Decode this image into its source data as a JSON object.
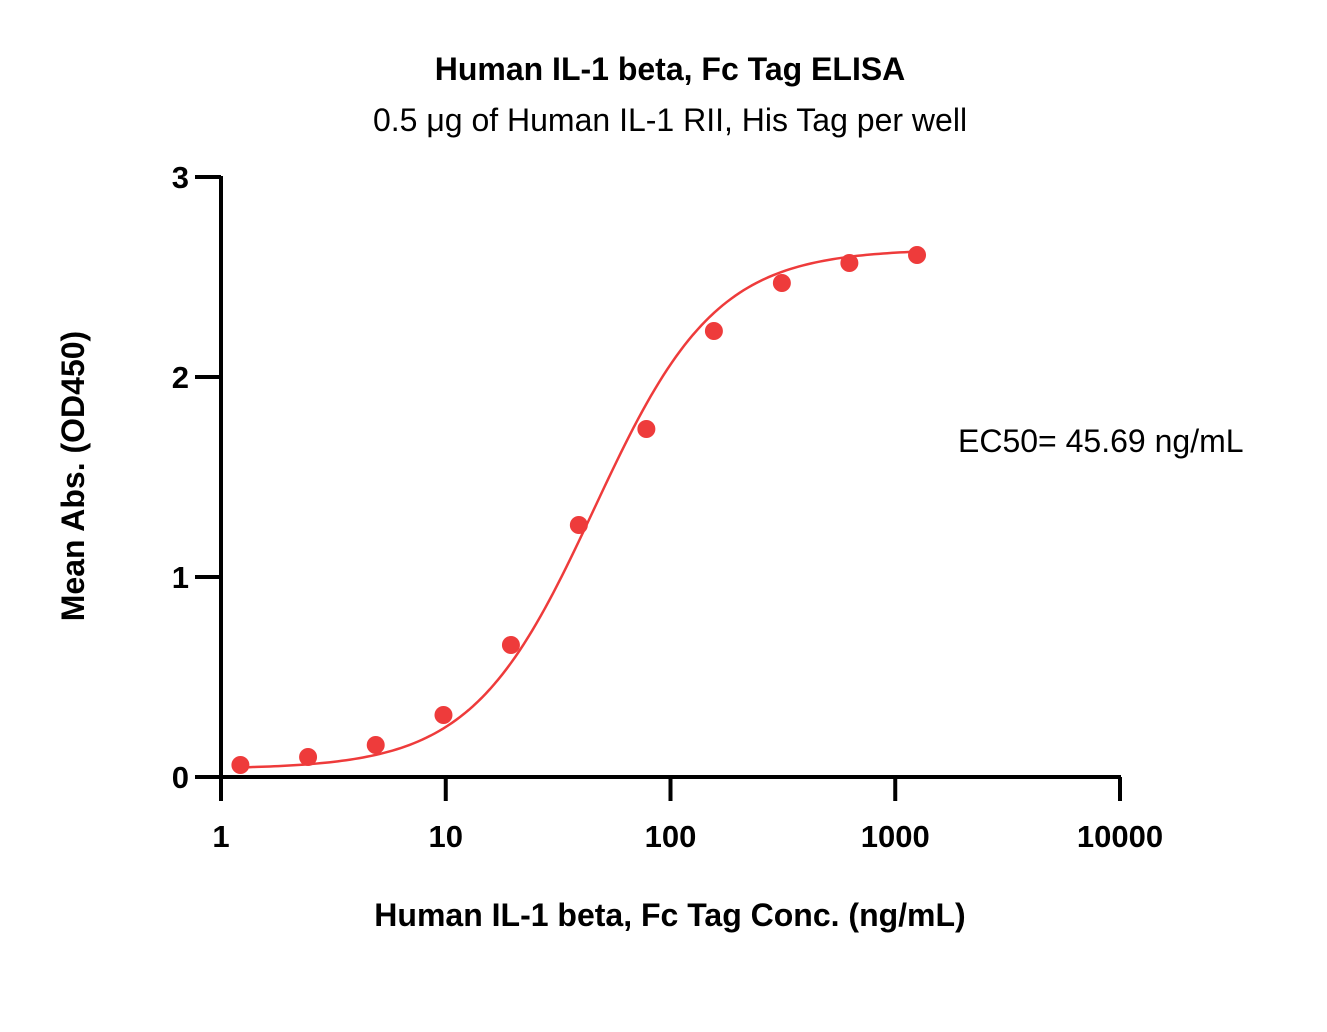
{
  "chart_data": {
    "type": "scatter",
    "title": "Human IL-1 beta, Fc Tag ELISA",
    "subtitle": "0.5 μg of Human IL-1 RII, His Tag per well",
    "xlabel": "Human IL-1 beta, Fc Tag Conc. (ng/mL)",
    "ylabel": "Mean Abs. (OD450)",
    "x_scale": "log",
    "xlim": [
      1,
      10000
    ],
    "ylim": [
      0,
      3
    ],
    "x_ticks": [
      1,
      10,
      100,
      1000,
      10000
    ],
    "x_tick_labels": [
      "1",
      "10",
      "100",
      "1000",
      "10000"
    ],
    "y_ticks": [
      0,
      1,
      2,
      3
    ],
    "y_tick_labels": [
      "0",
      "1",
      "2",
      "3"
    ],
    "grid": false,
    "series": [
      {
        "color": "#ee3b3b",
        "x": [
          1.22,
          2.44,
          4.88,
          9.77,
          19.5,
          39.1,
          78.1,
          156,
          313,
          625,
          1250
        ],
        "y": [
          0.06,
          0.1,
          0.16,
          0.31,
          0.66,
          1.26,
          1.74,
          2.23,
          2.47,
          2.57,
          2.61
        ]
      }
    ],
    "fit": {
      "type": "4PL",
      "bottom": 0.04,
      "top": 2.64,
      "ec50": 45.69,
      "hill": 1.6
    },
    "annotations": [
      {
        "text": "EC50= 45.69 ng/mL"
      }
    ]
  }
}
